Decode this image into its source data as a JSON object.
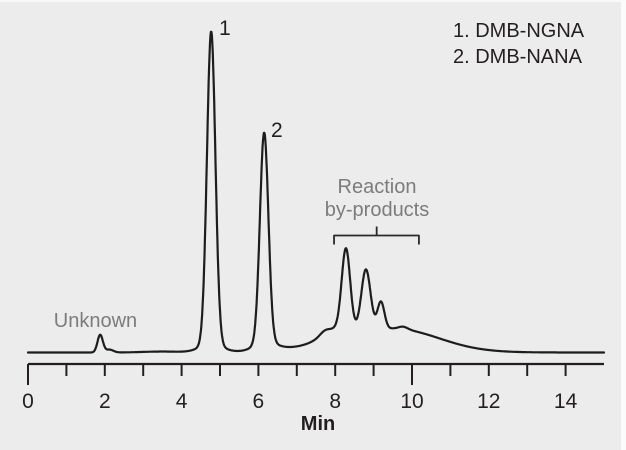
{
  "figure": {
    "background": "#ececec",
    "trace_color": "#1d1d1d",
    "axis_color": "#231f20",
    "annotation_gray": "#7c7c7c"
  },
  "legend": {
    "line1": "1. DMB-NGNA",
    "line2": "2. DMB-NANA"
  },
  "annotations": {
    "unknown": "Unknown",
    "reaction_line1": "Reaction",
    "reaction_line2": "by-products",
    "peak1_number": "1",
    "peak2_number": "2"
  },
  "axis": {
    "label": "Min",
    "tick_labels": [
      "0",
      "2",
      "4",
      "6",
      "8",
      "10",
      "12",
      "14"
    ]
  },
  "chart_data": {
    "type": "line",
    "title": "",
    "xlabel": "Min",
    "ylabel": "",
    "x_range": [
      0,
      15
    ],
    "grid": false,
    "legend_position": "top-right",
    "x_major_ticks": [
      0,
      2,
      4,
      6,
      8,
      10,
      12,
      14
    ],
    "x_minor_ticks": [
      1,
      3,
      5,
      7,
      9,
      11,
      13
    ],
    "long_ticks": [
      0,
      10
    ],
    "peaks": [
      {
        "name": "Unknown",
        "rt_min": 1.88,
        "rel_height": 5.5,
        "sigma": 0.07
      },
      {
        "name": "DMB-NGNA",
        "label": "1",
        "rt_min": 4.77,
        "rel_height": 97.5,
        "sigma": 0.11
      },
      {
        "name": "DMB-NANA",
        "label": "2",
        "rt_min": 6.15,
        "rel_height": 65.5,
        "sigma": 0.11
      },
      {
        "name": "reaction by-product 1",
        "rt_min": 8.28,
        "rel_height": 25.0,
        "sigma": 0.11
      },
      {
        "name": "reaction by-product 2",
        "rt_min": 8.8,
        "rel_height": 19.0,
        "sigma": 0.12
      },
      {
        "name": "reaction by-product 3",
        "rt_min": 9.19,
        "rel_height": 8.5,
        "sigma": 0.09
      },
      {
        "name": "reaction by-product 4",
        "rt_min": 9.77,
        "rel_height": 0.8,
        "sigma": 0.12
      }
    ],
    "baseline_components": [
      {
        "rt_min": 2.12,
        "rel_height": 0.9,
        "sigma": 0.1
      },
      {
        "rt_min": 3.5,
        "rel_height": 0.3,
        "sigma": 0.5
      },
      {
        "rt_min": 4.77,
        "rel_height": 2.5,
        "sigma": 0.3
      },
      {
        "rt_min": 6.18,
        "rel_height": 2.5,
        "sigma": 0.3
      },
      {
        "rt_min": 7.72,
        "rel_height": 1.0,
        "sigma": 0.12
      },
      {
        "rt_min": 8.0,
        "rel_height": 3.0,
        "sigma": 0.35
      },
      {
        "rt_min": 9.1,
        "rel_height": 6.0,
        "sigma": 1.35
      },
      {
        "rt_min": 10.0,
        "rel_height": 2.0,
        "sigma": 0.9
      }
    ],
    "bracket": {
      "t_start": 7.97,
      "t_end": 10.18,
      "t_stem": 9.08
    }
  }
}
